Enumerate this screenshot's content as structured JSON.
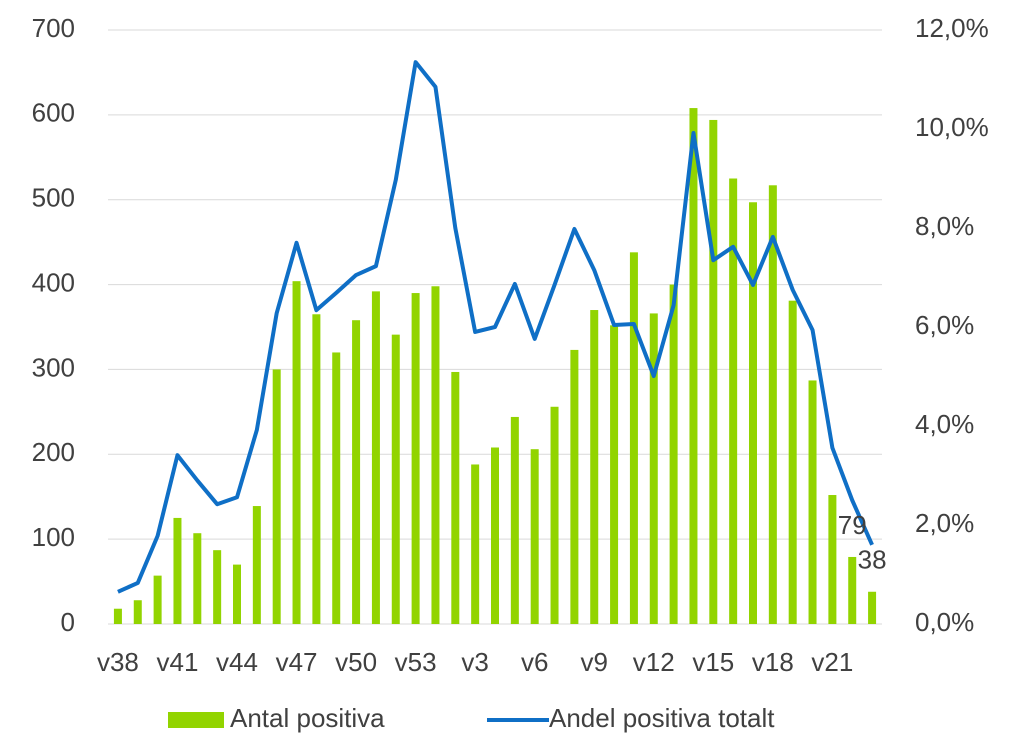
{
  "chart_data": {
    "type": "bar_line",
    "categories": [
      "v38",
      null,
      null,
      "v41",
      null,
      null,
      "v44",
      null,
      null,
      "v47",
      null,
      null,
      "v50",
      null,
      null,
      "v53",
      null,
      null,
      "v3",
      null,
      null,
      "v6",
      null,
      null,
      "v9",
      null,
      null,
      "v12",
      null,
      null,
      "v15",
      null,
      null,
      "v18",
      null,
      null,
      "v21",
      null,
      null
    ],
    "series": [
      {
        "name": "Antal positiva",
        "color": "#92d400",
        "axis": "y",
        "values": [
          18,
          28,
          57,
          125,
          107,
          87,
          70,
          139,
          300,
          404,
          365,
          320,
          358,
          392,
          341,
          390,
          398,
          297,
          188,
          208,
          244,
          206,
          256,
          323,
          370,
          352,
          438,
          366,
          400,
          608,
          594,
          525,
          497,
          517,
          381,
          287,
          152,
          79,
          38
        ],
        "value_labels": [
          null,
          null,
          null,
          null,
          null,
          null,
          null,
          null,
          null,
          null,
          null,
          null,
          null,
          null,
          null,
          null,
          null,
          null,
          null,
          null,
          null,
          null,
          null,
          null,
          null,
          null,
          null,
          null,
          null,
          null,
          null,
          null,
          null,
          null,
          null,
          null,
          null,
          "79",
          "38"
        ]
      },
      {
        "name": "Andel positiva totalt",
        "color": "#0f6fc6",
        "axis": "y2",
        "values": [
          0.65,
          0.83,
          1.78,
          3.41,
          2.9,
          2.42,
          2.56,
          3.92,
          6.28,
          7.7,
          6.34,
          6.69,
          7.05,
          7.23,
          8.97,
          11.35,
          10.85,
          8.0,
          5.9,
          6.0,
          6.87,
          5.76,
          6.85,
          7.98,
          7.15,
          6.04,
          6.06,
          5.01,
          6.44,
          9.92,
          7.35,
          7.62,
          6.85,
          7.82,
          6.75,
          5.94,
          3.56,
          2.5,
          1.6
        ]
      }
    ],
    "ylim": [
      0,
      700
    ],
    "yticks": [
      0,
      100,
      200,
      300,
      400,
      500,
      600,
      700
    ],
    "y2lim": [
      0,
      12
    ],
    "y2ticks": [
      {
        "value": 0,
        "label": "0,0%"
      },
      {
        "value": 2,
        "label": "2,0%"
      },
      {
        "value": 4,
        "label": "4,0%"
      },
      {
        "value": 6,
        "label": "6,0%"
      },
      {
        "value": 8,
        "label": "8,0%"
      },
      {
        "value": 10,
        "label": "10,0%"
      },
      {
        "value": 12,
        "label": "12,0%"
      }
    ],
    "grid": true,
    "legend": "bottom"
  }
}
